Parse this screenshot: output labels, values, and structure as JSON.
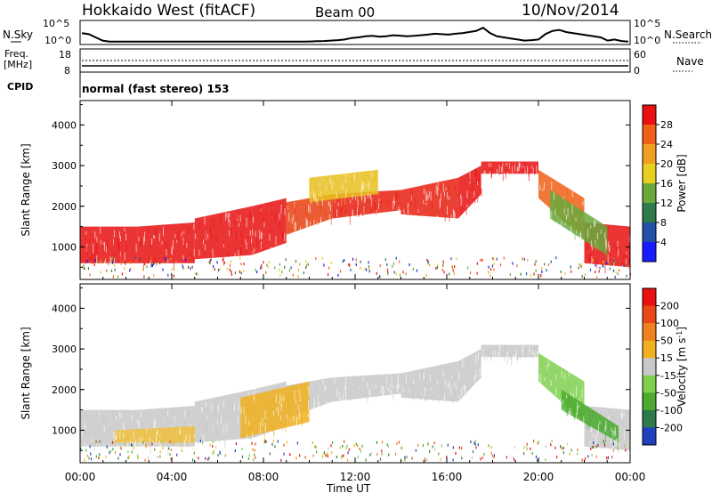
{
  "header": {
    "station": "Hokkaido West (fitACF)",
    "beam": "Beam 00",
    "date": "10/Nov/2014"
  },
  "noise_panel": {
    "left_label": "N.Sky",
    "right_label": "N.Search",
    "ticks": [
      "10^5",
      "10^0"
    ],
    "sky_series": [
      0.45,
      0.4,
      0.25,
      0.1,
      0.05,
      0.05,
      0.05,
      0.05,
      0.05,
      0.05,
      0.05,
      0.05,
      0.05,
      0.05,
      0.05,
      0.05,
      0.05,
      0.05,
      0.05,
      0.05,
      0.05,
      0.05,
      0.05,
      0.05,
      0.05,
      0.05,
      0.05,
      0.05,
      0.05,
      0.05,
      0.05,
      0.05,
      0.05,
      0.06,
      0.07,
      0.08,
      0.1,
      0.12,
      0.15,
      0.22,
      0.25,
      0.3,
      0.32,
      0.28,
      0.3,
      0.35,
      0.33,
      0.3,
      0.32,
      0.35,
      0.38,
      0.42,
      0.4,
      0.38,
      0.42,
      0.45,
      0.5,
      0.55,
      0.7,
      0.45,
      0.3,
      0.25,
      0.2,
      0.15,
      0.1,
      0.12,
      0.15,
      0.4,
      0.55,
      0.6,
      0.5,
      0.45,
      0.4,
      0.35,
      0.3,
      0.25,
      0.1,
      0.15,
      0.08,
      0.05
    ]
  },
  "freq_panel": {
    "left_label_1": "Freq.",
    "left_label_2": "[MHz]",
    "right_label": "Nave",
    "left_ticks": [
      "18",
      "8"
    ],
    "right_ticks": [
      "60",
      "0"
    ],
    "cpid_label": "CPID",
    "cpid_text": "normal (fast stereo) 153"
  },
  "axes": {
    "y_label": "Slant Range [km]",
    "y_ticks": [
      "1000",
      "2000",
      "3000",
      "4000"
    ],
    "x_ticks": [
      "00:00",
      "04:00",
      "08:00",
      "12:00",
      "16:00",
      "20:00",
      "00:00"
    ],
    "x_label": "Time UT"
  },
  "chart_data": [
    {
      "type": "heatmap",
      "title": "Power",
      "x_range_hours": [
        0,
        24
      ],
      "ylim": [
        200,
        4600
      ],
      "colorbar_label": "Power [dB]",
      "colorbar_ticks": [
        "4",
        "8",
        "12",
        "16",
        "20",
        "24",
        "28"
      ],
      "colorbar_colors": [
        "#1a1aff",
        "#2050a8",
        "#2e7a4a",
        "#6aa83c",
        "#e8d020",
        "#f0a020",
        "#f06018",
        "#e81010"
      ],
      "echo_bands": [
        {
          "t": [
            0.0,
            2.5
          ],
          "lo": [
            600,
            600
          ],
          "hi": [
            1500,
            1500
          ],
          "color": "#e81010"
        },
        {
          "t": [
            2.5,
            5.0
          ],
          "lo": [
            600,
            600
          ],
          "hi": [
            1500,
            1600
          ],
          "color": "#e81010"
        },
        {
          "t": [
            5.0,
            7.5
          ],
          "lo": [
            700,
            800
          ],
          "hi": [
            1700,
            2000
          ],
          "color": "#e81010"
        },
        {
          "t": [
            7.5,
            9.0
          ],
          "lo": [
            800,
            1100
          ],
          "hi": [
            2000,
            2200
          ],
          "color": "#e81010"
        },
        {
          "t": [
            9.0,
            11.0
          ],
          "lo": [
            1300,
            1700
          ],
          "hi": [
            2100,
            2300
          ],
          "color": "#e84010"
        },
        {
          "t": [
            11.0,
            14.0
          ],
          "lo": [
            1700,
            1900
          ],
          "hi": [
            2300,
            2400
          ],
          "color": "#e82010"
        },
        {
          "t": [
            14.0,
            16.5
          ],
          "lo": [
            1800,
            1700
          ],
          "hi": [
            2400,
            2700
          ],
          "color": "#e82010"
        },
        {
          "t": [
            16.5,
            17.5
          ],
          "lo": [
            1700,
            2300
          ],
          "hi": [
            2700,
            3000
          ],
          "color": "#e81010"
        },
        {
          "t": [
            17.5,
            20.0
          ],
          "lo": [
            2800,
            2800
          ],
          "hi": [
            3100,
            3100
          ],
          "color": "#e81010"
        },
        {
          "t": [
            20.0,
            22.0
          ],
          "lo": [
            2200,
            1200
          ],
          "hi": [
            2900,
            2200
          ],
          "color": "#f06018"
        },
        {
          "t": [
            22.0,
            24.0
          ],
          "lo": [
            600,
            500
          ],
          "hi": [
            1600,
            1500
          ],
          "color": "#e81010"
        },
        {
          "t": [
            10.0,
            13.0
          ],
          "lo": [
            2100,
            2300
          ],
          "hi": [
            2700,
            2900
          ],
          "color": "#e8c020"
        },
        {
          "t": [
            20.5,
            23.0
          ],
          "lo": [
            1700,
            800
          ],
          "hi": [
            2400,
            1500
          ],
          "color": "#6aa83c"
        }
      ]
    },
    {
      "type": "heatmap",
      "title": "Velocity",
      "x_range_hours": [
        0,
        24
      ],
      "ylim": [
        200,
        4600
      ],
      "colorbar_label": "Velocity [m s",
      "colorbar_label_sup": "-1",
      "colorbar_label_end": "]",
      "colorbar_ticks": [
        "200",
        "100",
        "50",
        "15",
        "-15",
        "-50",
        "-100",
        "-200"
      ],
      "colorbar_colors": [
        "#2040c0",
        "#2e7a4a",
        "#4caa30",
        "#80d050",
        "#c8c8c8",
        "#f0b020",
        "#f08020",
        "#e84818",
        "#e81010"
      ],
      "echo_bands": [
        {
          "t": [
            0.0,
            2.5
          ],
          "lo": [
            600,
            600
          ],
          "hi": [
            1500,
            1500
          ],
          "color": "#c8c8c8"
        },
        {
          "t": [
            2.5,
            5.0
          ],
          "lo": [
            600,
            600
          ],
          "hi": [
            1500,
            1600
          ],
          "color": "#c8c8c8"
        },
        {
          "t": [
            5.0,
            7.5
          ],
          "lo": [
            700,
            800
          ],
          "hi": [
            1700,
            2000
          ],
          "color": "#c8c8c8"
        },
        {
          "t": [
            7.5,
            9.0
          ],
          "lo": [
            800,
            1100
          ],
          "hi": [
            2000,
            2200
          ],
          "color": "#c8c8c8"
        },
        {
          "t": [
            9.0,
            11.0
          ],
          "lo": [
            1300,
            1700
          ],
          "hi": [
            2100,
            2300
          ],
          "color": "#c8c8c8"
        },
        {
          "t": [
            11.0,
            14.0
          ],
          "lo": [
            1700,
            1900
          ],
          "hi": [
            2300,
            2400
          ],
          "color": "#c8c8c8"
        },
        {
          "t": [
            14.0,
            16.5
          ],
          "lo": [
            1800,
            1700
          ],
          "hi": [
            2400,
            2700
          ],
          "color": "#c8c8c8"
        },
        {
          "t": [
            16.5,
            17.5
          ],
          "lo": [
            1700,
            2300
          ],
          "hi": [
            2700,
            3000
          ],
          "color": "#c8c8c8"
        },
        {
          "t": [
            17.5,
            20.0
          ],
          "lo": [
            2800,
            2800
          ],
          "hi": [
            3100,
            3100
          ],
          "color": "#c8c8c8"
        },
        {
          "t": [
            20.0,
            22.0
          ],
          "lo": [
            2200,
            1200
          ],
          "hi": [
            2900,
            2200
          ],
          "color": "#80d050"
        },
        {
          "t": [
            22.0,
            24.0
          ],
          "lo": [
            600,
            500
          ],
          "hi": [
            1600,
            1500
          ],
          "color": "#c8c8c8"
        },
        {
          "t": [
            7.0,
            10.0
          ],
          "lo": [
            800,
            1200
          ],
          "hi": [
            1800,
            2200
          ],
          "color": "#f0b020"
        },
        {
          "t": [
            1.5,
            5.0
          ],
          "lo": [
            700,
            700
          ],
          "hi": [
            1000,
            1100
          ],
          "color": "#f0c040"
        },
        {
          "t": [
            21.0,
            23.5
          ],
          "lo": [
            1500,
            700
          ],
          "hi": [
            2000,
            1100
          ],
          "color": "#4caa30"
        }
      ]
    }
  ]
}
